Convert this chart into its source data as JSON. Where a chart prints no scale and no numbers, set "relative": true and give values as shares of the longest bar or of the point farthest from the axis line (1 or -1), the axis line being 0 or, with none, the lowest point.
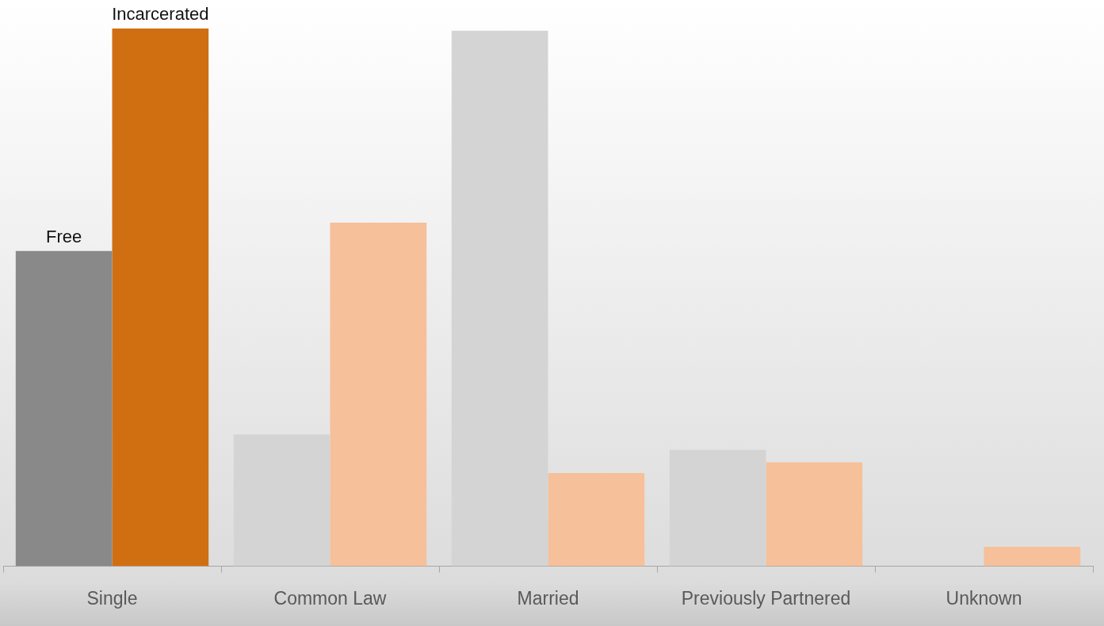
{
  "chart_data": {
    "type": "bar",
    "relative": true,
    "legend": false,
    "grid": false,
    "categories": [
      "Single",
      "Common Law",
      "Married",
      "Previously Partnered",
      "Unknown"
    ],
    "series": [
      {
        "name": "Free",
        "colors": [
          "#898989",
          "#d4d4d4",
          "#d4d4d4",
          "#d4d4d4",
          "#d4d4d4"
        ],
        "values": [
          0.586,
          0.245,
          0.996,
          0.216,
          0
        ]
      },
      {
        "name": "Incarcerated",
        "colors": [
          "#d06f12",
          "#f6c09a",
          "#f6c09a",
          "#f6c09a",
          "#f6c09a"
        ],
        "values": [
          1,
          0.639,
          0.173,
          0.193,
          0.036
        ]
      }
    ]
  }
}
